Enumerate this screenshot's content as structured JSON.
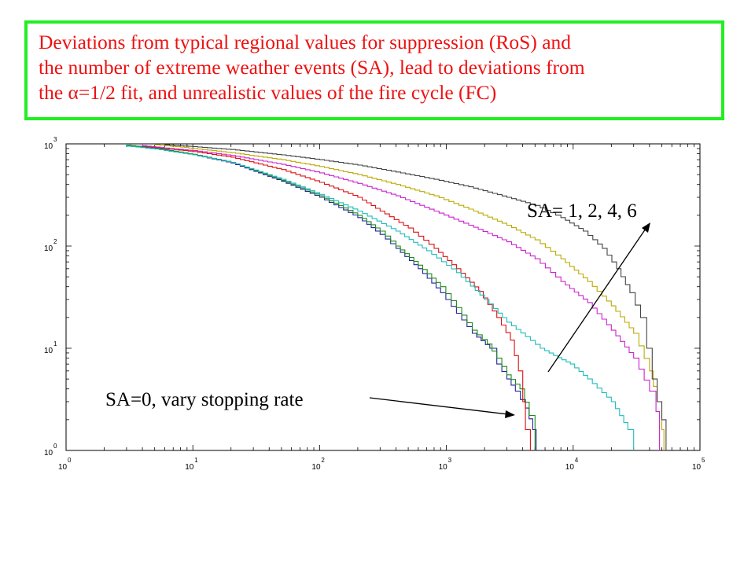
{
  "slide_title": {
    "lines": [
      "Deviations from typical regional values for suppression (RoS) and",
      "the number of extreme weather events (SA), lead to deviations from",
      "the α=1/2 fit, and unrealistic values of the fire cycle (FC)"
    ],
    "color": "#ee1111",
    "border_color": "#22ee22"
  },
  "chart_data": {
    "type": "line",
    "x_scale": "log",
    "y_scale": "log",
    "xlim": [
      1,
      100000
    ],
    "ylim": [
      1,
      1000
    ],
    "x_ticks": [
      {
        "value": 1,
        "base": "10",
        "exp": "0"
      },
      {
        "value": 10,
        "base": "10",
        "exp": "1"
      },
      {
        "value": 100,
        "base": "10",
        "exp": "2"
      },
      {
        "value": 1000,
        "base": "10",
        "exp": "3"
      },
      {
        "value": 10000,
        "base": "10",
        "exp": "4"
      },
      {
        "value": 100000,
        "base": "10",
        "exp": "5"
      }
    ],
    "y_ticks": [
      {
        "value": 1,
        "base": "10",
        "exp": "0"
      },
      {
        "value": 10,
        "base": "10",
        "exp": "1"
      },
      {
        "value": 100,
        "base": "10",
        "exp": "2"
      },
      {
        "value": 1000,
        "base": "10",
        "exp": "3"
      }
    ],
    "grid": false,
    "series": [
      {
        "color": "#22229a",
        "points": [
          [
            3,
            1000
          ],
          [
            3,
            960
          ],
          [
            5,
            900
          ],
          [
            10,
            780
          ],
          [
            20,
            650
          ],
          [
            50,
            430
          ],
          [
            100,
            300
          ],
          [
            200,
            190
          ],
          [
            300,
            130
          ],
          [
            400,
            95
          ],
          [
            600,
            60
          ],
          [
            900,
            35
          ],
          [
            1200,
            22
          ],
          [
            1600,
            14
          ],
          [
            2200,
            10
          ],
          [
            2500,
            7
          ],
          [
            3000,
            5
          ],
          [
            3500,
            3.8
          ],
          [
            4200,
            2.6
          ],
          [
            4800,
            1.6
          ],
          [
            5100,
            1
          ]
        ]
      },
      {
        "color": "#1a8a1a",
        "points": [
          [
            3,
            1000
          ],
          [
            3,
            970
          ],
          [
            5,
            910
          ],
          [
            10,
            790
          ],
          [
            20,
            660
          ],
          [
            50,
            440
          ],
          [
            100,
            310
          ],
          [
            200,
            200
          ],
          [
            300,
            140
          ],
          [
            400,
            100
          ],
          [
            600,
            65
          ],
          [
            900,
            40
          ],
          [
            1200,
            25
          ],
          [
            1600,
            15
          ],
          [
            2100,
            11
          ],
          [
            2500,
            8
          ],
          [
            3000,
            5.5
          ],
          [
            3800,
            4
          ],
          [
            4500,
            2.2
          ],
          [
            5000,
            1
          ]
        ]
      },
      {
        "color": "#dd1111",
        "points": [
          [
            4,
            1000
          ],
          [
            4,
            950
          ],
          [
            6,
            900
          ],
          [
            10,
            840
          ],
          [
            20,
            740
          ],
          [
            50,
            560
          ],
          [
            100,
            420
          ],
          [
            200,
            300
          ],
          [
            300,
            220
          ],
          [
            500,
            150
          ],
          [
            800,
            95
          ],
          [
            1200,
            60
          ],
          [
            1800,
            36
          ],
          [
            2500,
            20
          ],
          [
            3200,
            12
          ],
          [
            3700,
            6
          ],
          [
            4000,
            3
          ],
          [
            4200,
            1.6
          ],
          [
            4600,
            1
          ]
        ]
      },
      {
        "color": "#22bbbb",
        "points": [
          [
            3,
            1000
          ],
          [
            3,
            950
          ],
          [
            5,
            890
          ],
          [
            10,
            780
          ],
          [
            20,
            660
          ],
          [
            50,
            450
          ],
          [
            100,
            320
          ],
          [
            200,
            220
          ],
          [
            400,
            140
          ],
          [
            700,
            90
          ],
          [
            1200,
            55
          ],
          [
            2000,
            30
          ],
          [
            3000,
            18
          ],
          [
            4200,
            13
          ],
          [
            5500,
            10
          ],
          [
            7000,
            8.5
          ],
          [
            9500,
            7
          ],
          [
            13000,
            5
          ],
          [
            20000,
            3
          ],
          [
            27000,
            1.6
          ],
          [
            30000,
            1
          ]
        ]
      },
      {
        "color": "#cc22cc",
        "points": [
          [
            4,
            1000
          ],
          [
            4,
            960
          ],
          [
            6,
            910
          ],
          [
            10,
            860
          ],
          [
            20,
            770
          ],
          [
            50,
            630
          ],
          [
            100,
            520
          ],
          [
            200,
            410
          ],
          [
            400,
            310
          ],
          [
            800,
            220
          ],
          [
            1500,
            160
          ],
          [
            3000,
            110
          ],
          [
            5000,
            75
          ],
          [
            8000,
            45
          ],
          [
            13000,
            28
          ],
          [
            20000,
            15
          ],
          [
            30000,
            8
          ],
          [
            40000,
            3.8
          ],
          [
            45000,
            2.4
          ],
          [
            48000,
            1
          ]
        ]
      },
      {
        "color": "#bbaa00",
        "points": [
          [
            5,
            1000
          ],
          [
            5,
            980
          ],
          [
            8,
            930
          ],
          [
            10,
            900
          ],
          [
            20,
            820
          ],
          [
            50,
            700
          ],
          [
            100,
            600
          ],
          [
            200,
            500
          ],
          [
            400,
            400
          ],
          [
            800,
            310
          ],
          [
            1500,
            230
          ],
          [
            3000,
            160
          ],
          [
            5000,
            115
          ],
          [
            8000,
            75
          ],
          [
            13000,
            45
          ],
          [
            20000,
            26
          ],
          [
            30000,
            14
          ],
          [
            40000,
            6
          ],
          [
            46000,
            3
          ],
          [
            50000,
            1.6
          ],
          [
            52000,
            1
          ]
        ]
      },
      {
        "color": "#444444",
        "points": [
          [
            6,
            1000
          ],
          [
            6,
            980
          ],
          [
            10,
            940
          ],
          [
            20,
            880
          ],
          [
            50,
            780
          ],
          [
            100,
            700
          ],
          [
            200,
            620
          ],
          [
            400,
            530
          ],
          [
            800,
            450
          ],
          [
            1500,
            380
          ],
          [
            3000,
            300
          ],
          [
            5000,
            250
          ],
          [
            8000,
            190
          ],
          [
            12000,
            140
          ],
          [
            17000,
            95
          ],
          [
            22000,
            60
          ],
          [
            28000,
            35
          ],
          [
            34000,
            20
          ],
          [
            38000,
            10
          ],
          [
            42000,
            5
          ],
          [
            46000,
            3
          ],
          [
            50000,
            2
          ],
          [
            54000,
            1
          ]
        ]
      }
    ],
    "annotations": [
      {
        "text": "SA= 1, 2, 4, 6"
      },
      {
        "text": "SA=0, vary stopping rate"
      }
    ]
  }
}
